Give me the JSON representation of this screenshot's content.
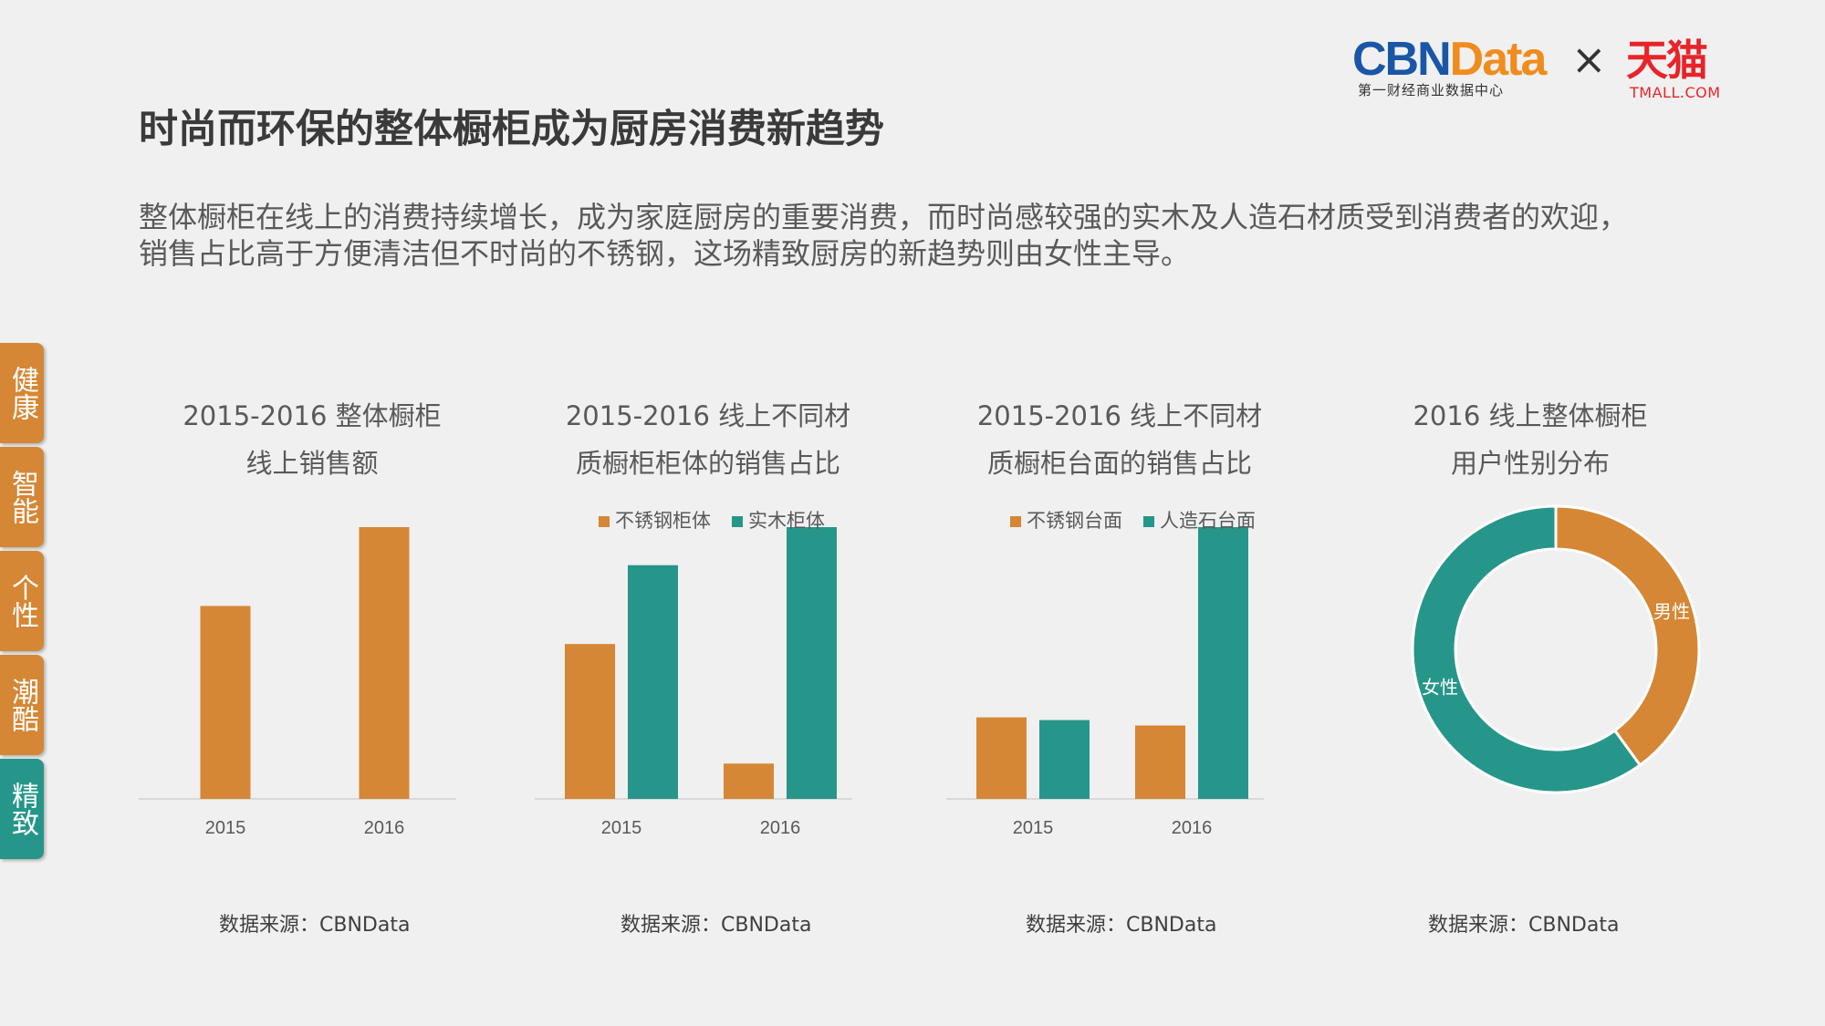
{
  "logo": {
    "cbn_part1": "CBN",
    "cbn_part2": "Data",
    "cbn_subtitle": "第一财经商业数据中心",
    "times": "×",
    "tmall": "天猫",
    "tmall_subtitle": "TMALL.COM"
  },
  "page_title": "时尚而环保的整体橱柜成为厨房消费新趋势",
  "intro": "整体橱柜在线上的消费持续增长，成为家庭厨房的重要消费，而时尚感较强的实木及人造石材质受到消费者的欢迎，销售占比高于方便清洁但不时尚的不锈钢，这场精致厨房的新趋势则由女性主导。",
  "side_tabs": [
    {
      "label": "健康",
      "active": false
    },
    {
      "label": "智能",
      "active": false
    },
    {
      "label": "个性",
      "active": false
    },
    {
      "label": "潮酷",
      "active": false
    },
    {
      "label": "精致",
      "active": true
    }
  ],
  "colors": {
    "orange": "#d58735",
    "teal": "#26968a"
  },
  "source_text": "数据来源：CBNData",
  "chart_data": [
    {
      "type": "bar",
      "title": "2015-2016 整体橱柜\n线上销售额",
      "categories": [
        "2015",
        "2016"
      ],
      "series": [
        {
          "values": [
            71,
            100
          ],
          "color": "#d58735"
        }
      ],
      "ylim": [
        0,
        100
      ],
      "grid": false
    },
    {
      "type": "bar",
      "title": "2015-2016 线上不同材\n质橱柜柜体的销售占比",
      "categories": [
        "2015",
        "2016"
      ],
      "legend_position": "top",
      "series": [
        {
          "name": "不锈钢柜体",
          "values": [
            57,
            13
          ],
          "color": "#d58735"
        },
        {
          "name": "实木柜体",
          "values": [
            86,
            100
          ],
          "color": "#26968a"
        }
      ],
      "ylim": [
        0,
        100
      ],
      "grid": false
    },
    {
      "type": "bar",
      "title": "2015-2016 线上不同材\n质橱柜台面的销售占比",
      "categories": [
        "2015",
        "2016"
      ],
      "legend_position": "top",
      "series": [
        {
          "name": "不锈钢台面",
          "values": [
            30,
            27
          ],
          "color": "#d58735"
        },
        {
          "name": "人造石台面",
          "values": [
            29,
            100
          ],
          "color": "#26968a"
        }
      ],
      "ylim": [
        0,
        100
      ],
      "grid": false
    },
    {
      "type": "pie",
      "title": "2016 线上整体橱柜\n用户性别分布",
      "slices": [
        {
          "label": "男性",
          "value": 40,
          "color": "#d58735"
        },
        {
          "label": "女性",
          "value": 60,
          "color": "#26968a"
        }
      ]
    }
  ]
}
